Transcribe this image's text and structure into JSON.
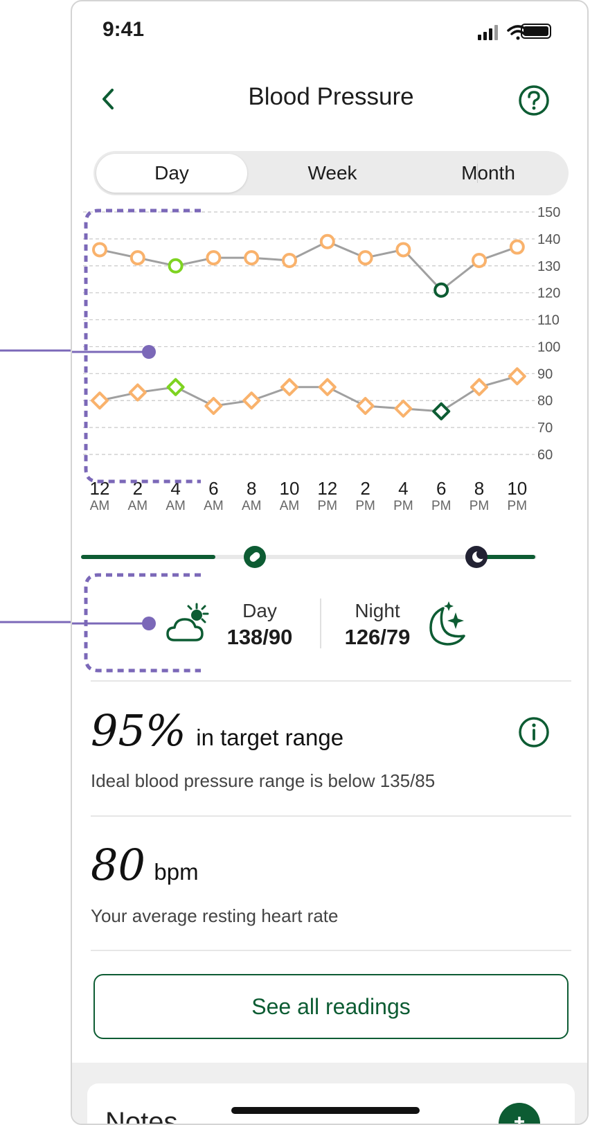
{
  "status": {
    "time": "9:41"
  },
  "header": {
    "title": "Blood Pressure",
    "back_icon": "chevron-left-icon",
    "help_icon": "help-circle-icon"
  },
  "tabs": [
    {
      "label": "Day",
      "active": true
    },
    {
      "label": "Week",
      "active": false
    },
    {
      "label": "Month",
      "active": false
    }
  ],
  "colors": {
    "accent": "#0d5c33",
    "reading_normal": "#f9b26c",
    "reading_good": "#7ed321",
    "reading_night": "#0d5c33",
    "annotation": "#7b68b8"
  },
  "chart_data": {
    "type": "line",
    "yticks": [
      150,
      140,
      130,
      120,
      110,
      100,
      90,
      80,
      70,
      60
    ],
    "ylim": [
      60,
      150
    ],
    "x": [
      {
        "num": "12",
        "per": "AM"
      },
      {
        "num": "2",
        "per": "AM"
      },
      {
        "num": "4",
        "per": "AM"
      },
      {
        "num": "6",
        "per": "AM"
      },
      {
        "num": "8",
        "per": "AM"
      },
      {
        "num": "10",
        "per": "AM"
      },
      {
        "num": "12",
        "per": "PM"
      },
      {
        "num": "2",
        "per": "PM"
      },
      {
        "num": "4",
        "per": "PM"
      },
      {
        "num": "6",
        "per": "PM"
      },
      {
        "num": "8",
        "per": "PM"
      },
      {
        "num": "10",
        "per": "PM"
      }
    ],
    "series": [
      {
        "marker": "circle",
        "values": [
          136,
          133,
          130,
          133,
          133,
          132,
          139,
          133,
          136,
          121,
          132,
          137
        ],
        "statuses": [
          "normal",
          "normal",
          "good",
          "normal",
          "normal",
          "normal",
          "normal",
          "normal",
          "normal",
          "night",
          "normal",
          "normal"
        ]
      },
      {
        "marker": "diamond",
        "values": [
          80,
          83,
          85,
          78,
          80,
          85,
          85,
          78,
          77,
          76,
          85,
          89
        ],
        "statuses": [
          "normal",
          "normal",
          "good",
          "normal",
          "normal",
          "normal",
          "normal",
          "normal",
          "normal",
          "night",
          "normal",
          "normal"
        ]
      }
    ],
    "grid": true
  },
  "timeline": {
    "pill_icon": "pill-icon",
    "moon_icon": "moon-icon"
  },
  "day_night": {
    "day_label": "Day",
    "day_value": "138/90",
    "day_icon": "cloud-sun-icon",
    "night_label": "Night",
    "night_value": "126/79",
    "night_icon": "moon-stars-icon"
  },
  "target": {
    "percent": "95%",
    "label": "in target range",
    "subtitle": "Ideal blood pressure range is below 135/85",
    "info_icon": "info-icon"
  },
  "heart": {
    "value": "80",
    "unit": "bpm",
    "subtitle": "Your average resting heart rate"
  },
  "see_all_label": "See all readings",
  "notes": {
    "title": "Notes",
    "add_icon": "plus-icon"
  }
}
